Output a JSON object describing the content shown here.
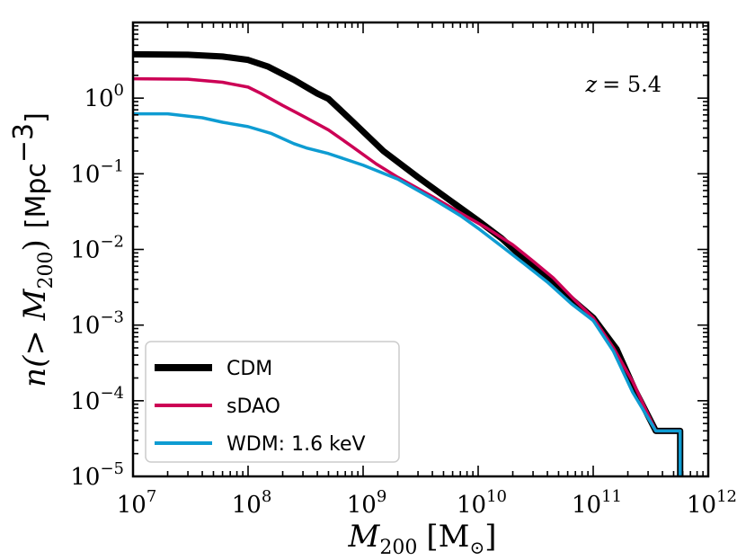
{
  "chart_data": {
    "type": "line",
    "xscale": "log",
    "yscale": "log",
    "xlim": [
      10000000.0,
      1000000000000.0
    ],
    "ylim": [
      1e-05,
      10
    ],
    "xlabel": {
      "var": "M",
      "sub": "200",
      "unit": "[M",
      "unit_sub": "⊙",
      "close": "]"
    },
    "ylabel": {
      "func": "n(> M",
      "sub": "200",
      "close": ")",
      "unit": "[Mpc",
      "sup": "−3",
      "unit_close": "]"
    },
    "annotation": {
      "lhs": "z",
      "rhs": "= 5.4"
    },
    "x_ticks": [
      {
        "base": "10",
        "exp": "7",
        "value": 10000000.0
      },
      {
        "base": "10",
        "exp": "8",
        "value": 100000000.0
      },
      {
        "base": "10",
        "exp": "9",
        "value": 1000000000.0
      },
      {
        "base": "10",
        "exp": "10",
        "value": 10000000000.0
      },
      {
        "base": "10",
        "exp": "11",
        "value": 100000000000.0
      },
      {
        "base": "10",
        "exp": "12",
        "value": 1000000000000.0
      }
    ],
    "y_ticks": [
      {
        "base": "10",
        "exp": "−5",
        "value": 1e-05
      },
      {
        "base": "10",
        "exp": "−4",
        "value": 0.0001
      },
      {
        "base": "10",
        "exp": "−3",
        "value": 0.001
      },
      {
        "base": "10",
        "exp": "−2",
        "value": 0.01
      },
      {
        "base": "10",
        "exp": "−1",
        "value": 0.1
      },
      {
        "base": "10",
        "exp": "0",
        "value": 1
      }
    ],
    "series": [
      {
        "name": "CDM",
        "color": "#000000",
        "points": [
          [
            10000000.0,
            3.8
          ],
          [
            30000000.0,
            3.75
          ],
          [
            60000000.0,
            3.55
          ],
          [
            100000000.0,
            3.2
          ],
          [
            150000000.0,
            2.6
          ],
          [
            250000000.0,
            1.75
          ],
          [
            400000000.0,
            1.15
          ],
          [
            500000000.0,
            0.98
          ],
          [
            800000000.0,
            0.5
          ],
          [
            1500000000.0,
            0.2
          ],
          [
            3000000000.0,
            0.09
          ],
          [
            6000000000.0,
            0.042
          ],
          [
            10000000000.0,
            0.024
          ],
          [
            16000000000.0,
            0.014
          ],
          [
            25000000000.0,
            0.0075
          ],
          [
            40000000000.0,
            0.0042
          ],
          [
            65000000000.0,
            0.0022
          ],
          [
            100000000000.0,
            0.00125
          ],
          [
            160000000000.0,
            0.00048
          ],
          [
            230000000000.0,
            0.00014
          ],
          [
            350000000000.0,
            4e-05
          ],
          [
            570000000000.0,
            4e-05
          ],
          [
            570000000000.0,
            1e-05
          ]
        ]
      },
      {
        "name": "sDAO",
        "color": "#cc0055",
        "points": [
          [
            10000000.0,
            1.8
          ],
          [
            30000000.0,
            1.78
          ],
          [
            60000000.0,
            1.62
          ],
          [
            100000000.0,
            1.4
          ],
          [
            130000000.0,
            1.15
          ],
          [
            200000000.0,
            0.8
          ],
          [
            320000000.0,
            0.55
          ],
          [
            500000000.0,
            0.38
          ],
          [
            800000000.0,
            0.23
          ],
          [
            1300000000.0,
            0.135
          ],
          [
            2000000000.0,
            0.09
          ],
          [
            4000000000.0,
            0.05
          ],
          [
            8000000000.0,
            0.027
          ],
          [
            12000000000.0,
            0.019
          ],
          [
            20000000000.0,
            0.0115
          ],
          [
            30000000000.0,
            0.007
          ],
          [
            45000000000.0,
            0.0042
          ],
          [
            70000000000.0,
            0.0021
          ],
          [
            100000000000.0,
            0.00125
          ],
          [
            150000000000.0,
            0.0005
          ],
          [
            220000000000.0,
            0.00018
          ],
          [
            350000000000.0,
            4e-05
          ],
          [
            570000000000.0,
            4e-05
          ],
          [
            570000000000.0,
            1e-05
          ]
        ]
      },
      {
        "name": "WDM: 1.6 keV",
        "color": "#0e9cd2",
        "points": [
          [
            10000000.0,
            0.62
          ],
          [
            20000000.0,
            0.62
          ],
          [
            40000000.0,
            0.55
          ],
          [
            60000000.0,
            0.48
          ],
          [
            100000000.0,
            0.42
          ],
          [
            160000000.0,
            0.34
          ],
          [
            250000000.0,
            0.25
          ],
          [
            320000000.0,
            0.22
          ],
          [
            500000000.0,
            0.185
          ],
          [
            1000000000.0,
            0.13
          ],
          [
            2000000000.0,
            0.085
          ],
          [
            4000000000.0,
            0.047
          ],
          [
            7000000000.0,
            0.028
          ],
          [
            10000000000.0,
            0.019
          ],
          [
            16000000000.0,
            0.011
          ],
          [
            25000000000.0,
            0.0065
          ],
          [
            40000000000.0,
            0.0037
          ],
          [
            65000000000.0,
            0.0019
          ],
          [
            100000000000.0,
            0.00115
          ],
          [
            150000000000.0,
            0.00045
          ],
          [
            220000000000.0,
            0.00013
          ],
          [
            350000000000.0,
            4e-05
          ],
          [
            570000000000.0,
            4e-05
          ],
          [
            570000000000.0,
            1e-05
          ]
        ]
      }
    ],
    "legend": {
      "placement": "lower-left",
      "entries": [
        "CDM",
        "sDAO",
        "WDM: 1.6 keV"
      ]
    }
  }
}
